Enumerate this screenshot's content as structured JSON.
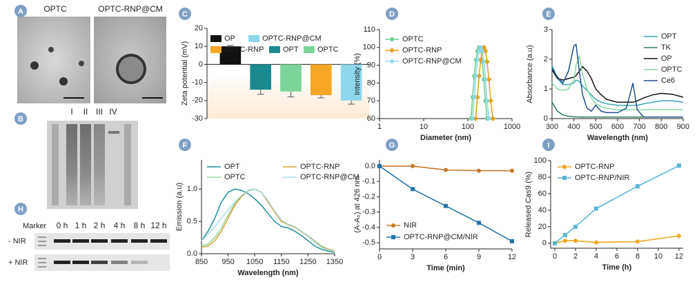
{
  "panels": [
    "A",
    "B",
    "C",
    "D",
    "E",
    "F",
    "G",
    "H",
    "I"
  ],
  "tem": {
    "labels": [
      "OPTC",
      "OPTC-RNP@CM"
    ]
  },
  "sds_page": {
    "lanes": [
      "I",
      "II",
      "III",
      "IV"
    ]
  },
  "release_gel": {
    "lanes": [
      "Marker",
      "0 h",
      "1 h",
      "2 h",
      "4 h",
      "8 h",
      "12 h"
    ],
    "rows": [
      "- NIR",
      "+ NIR"
    ]
  },
  "chart_data": [
    {
      "type": "bar",
      "ylabel": "Zeta potential (mV)",
      "ylim": [
        -30,
        20
      ],
      "yticks": [
        -30,
        -20,
        -10,
        0,
        10,
        20
      ],
      "series": [
        {
          "name": "OP",
          "color": "#111111",
          "values": [
            10
          ],
          "errors": [
            0.5
          ]
        },
        {
          "name": "OPT",
          "color": "#1b8a8f",
          "values": [
            -14
          ],
          "errors": [
            2.5
          ]
        },
        {
          "name": "OPTC",
          "color": "#7bd49a",
          "values": [
            -15
          ],
          "errors": [
            3
          ]
        },
        {
          "name": "OPTC-RNP",
          "color": "#f5a623",
          "values": [
            -17
          ],
          "errors": [
            1.5
          ]
        },
        {
          "name": "OPTC-RNP@CM",
          "color": "#8dd6ec",
          "values": [
            -20
          ],
          "errors": [
            2
          ]
        }
      ]
    },
    {
      "type": "line",
      "xscale": "log",
      "xlabel": "Diameter (nm)",
      "ylabel": "Intensity (%)",
      "xlim": [
        1,
        1000
      ],
      "xticks": [
        1,
        10,
        100,
        1000
      ],
      "ylim": [
        60,
        110
      ],
      "yticks": [
        60,
        70,
        80,
        90,
        100,
        110
      ],
      "series": [
        {
          "name": "OPTC",
          "color": "#6fcf8f",
          "marker": "circle",
          "x": [
            118,
            128,
            140,
            152,
            165,
            180,
            196,
            212,
            230,
            250,
            272
          ],
          "values": [
            60,
            72,
            84,
            93,
            98,
            100,
            98,
            92,
            82,
            70,
            60
          ]
        },
        {
          "name": "OPTC-RNP",
          "color": "#e0a21e",
          "marker": "diamond",
          "x": [
            150,
            165,
            180,
            196,
            212,
            230,
            250,
            272,
            300,
            330,
            370
          ],
          "values": [
            60,
            72,
            84,
            93,
            98,
            100,
            98,
            92,
            82,
            70,
            60
          ]
        },
        {
          "name": "OPTC-RNP@CM",
          "color": "#8fd8e6",
          "marker": "circle",
          "x": [
            128,
            140,
            152,
            165,
            180,
            196,
            212,
            230,
            250,
            272,
            300
          ],
          "values": [
            60,
            72,
            84,
            93,
            98,
            100,
            98,
            92,
            82,
            70,
            60
          ]
        }
      ]
    },
    {
      "type": "line",
      "xlabel": "Wavelength (nm)",
      "ylabel": "Absorbance (a.u)",
      "xlim": [
        300,
        900
      ],
      "xticks": [
        300,
        400,
        500,
        600,
        700,
        800,
        900
      ],
      "ylim": [
        0,
        3
      ],
      "yticks": [
        0,
        1,
        2,
        3
      ],
      "x": [
        300,
        325,
        350,
        375,
        400,
        410,
        425,
        440,
        460,
        480,
        500,
        525,
        550,
        600,
        640,
        660,
        670,
        690,
        720,
        760,
        800,
        850,
        900
      ],
      "series": [
        {
          "name": "OPT",
          "color": "#3aa6b0",
          "values": [
            1.8,
            1.35,
            1.15,
            1.15,
            1.2,
            1.3,
            1.25,
            1.1,
            0.95,
            0.8,
            0.65,
            0.55,
            0.5,
            0.45,
            0.45,
            0.45,
            0.45,
            0.45,
            0.5,
            0.55,
            0.6,
            0.6,
            0.55
          ]
        },
        {
          "name": "TK",
          "color": "#2e7d5b",
          "values": [
            0.55,
            0.25,
            0.12,
            0.08,
            0.06,
            0.06,
            0.05,
            0.05,
            0.05,
            0.05,
            0.05,
            0.05,
            0.05,
            0.05,
            0.05,
            0.05,
            0.05,
            0.05,
            0.05,
            0.05,
            0.05,
            0.05,
            0.05
          ]
        },
        {
          "name": "OP",
          "color": "#111111",
          "values": [
            1.65,
            1.35,
            1.3,
            1.35,
            1.4,
            1.45,
            1.6,
            1.75,
            1.6,
            1.35,
            1.0,
            0.8,
            0.65,
            0.55,
            0.55,
            0.55,
            0.55,
            0.6,
            0.7,
            0.8,
            0.85,
            0.82,
            0.72
          ]
        },
        {
          "name": "OPTC",
          "color": "#86d9a0",
          "values": [
            1.2,
            1.0,
            0.95,
            1.0,
            1.3,
            1.8,
            2.1,
            1.5,
            1.0,
            0.7,
            0.5,
            0.4,
            0.35,
            0.3,
            0.3,
            0.3,
            0.3,
            0.3,
            0.3,
            0.3,
            0.3,
            0.3,
            0.3
          ]
        },
        {
          "name": "Ce6",
          "color": "#214f8a",
          "values": [
            1.7,
            1.4,
            1.2,
            1.6,
            2.45,
            2.5,
            1.6,
            0.8,
            0.35,
            0.25,
            0.45,
            0.25,
            0.2,
            0.2,
            0.35,
            0.9,
            1.2,
            0.3,
            0.05,
            0.05,
            0.05,
            0.05,
            0.05
          ]
        }
      ]
    },
    {
      "type": "line",
      "xlabel": "Wavelength (nm)",
      "ylabel": "Emission (a.u)",
      "xlim": [
        850,
        1350
      ],
      "xticks": [
        850,
        950,
        1050,
        1150,
        1250,
        1350
      ],
      "ylim": [
        0,
        1.45
      ],
      "yticks": [
        {
          "value": 0,
          "label": "0.0"
        },
        0.5,
        {
          "value": 1,
          "label": "1.0"
        }
      ],
      "x": [
        850,
        875,
        900,
        925,
        950,
        975,
        1000,
        1025,
        1050,
        1075,
        1100,
        1125,
        1150,
        1175,
        1200,
        1225,
        1250,
        1275,
        1300,
        1325,
        1350
      ],
      "series": [
        {
          "name": "OPT",
          "color": "#1f8f97",
          "values": [
            0.2,
            0.35,
            0.55,
            0.8,
            0.95,
            1.0,
            0.98,
            0.93,
            0.85,
            0.75,
            0.62,
            0.5,
            0.42,
            0.4,
            0.35,
            0.28,
            0.2,
            0.12,
            0.07,
            0.04,
            0.02
          ]
        },
        {
          "name": "OPTC",
          "color": "#8fd69c",
          "values": [
            0.12,
            0.15,
            0.25,
            0.4,
            0.6,
            0.78,
            0.9,
            0.98,
            1.0,
            0.95,
            0.8,
            0.65,
            0.5,
            0.45,
            0.42,
            0.35,
            0.28,
            0.2,
            0.12,
            0.07,
            0.04
          ]
        },
        {
          "name": "OPTC-RNP",
          "color": "#d9a233",
          "values": [
            0.1,
            0.12,
            0.2,
            0.35,
            0.55,
            0.75,
            0.88,
            0.97,
            1.0,
            0.95,
            0.8,
            0.64,
            0.5,
            0.45,
            0.41,
            0.34,
            0.27,
            0.19,
            0.11,
            0.07,
            0.04
          ]
        },
        {
          "name": "OPTC-RNP@CM",
          "color": "#a9d8e6",
          "values": [
            0.2,
            0.3,
            0.42,
            0.55,
            0.68,
            0.8,
            0.9,
            0.97,
            1.0,
            0.95,
            0.82,
            0.66,
            0.52,
            0.46,
            0.42,
            0.35,
            0.27,
            0.18,
            0.1,
            0.06,
            0.03
          ]
        }
      ]
    },
    {
      "type": "line",
      "xlabel": "Time (min)",
      "ylabel": "(A-A₀) at 426 nm",
      "xlim": [
        0,
        12
      ],
      "xticks": [
        0,
        3,
        6,
        9,
        12
      ],
      "ylim": [
        -0.54,
        0.04
      ],
      "yticks": [
        {
          "value": 0,
          "label": "0.0"
        },
        -0.1,
        -0.2,
        -0.3,
        -0.4,
        -0.5
      ],
      "x": [
        0,
        3,
        6,
        9,
        12
      ],
      "series": [
        {
          "name": "NIR",
          "color": "#c8762a",
          "marker": "circle",
          "values": [
            0,
            0,
            -0.025,
            -0.03,
            -0.03
          ]
        },
        {
          "name": "OPTC-RNP@CM/NIR",
          "color": "#2474a8",
          "marker": "square",
          "values": [
            0,
            -0.15,
            -0.26,
            -0.37,
            -0.49
          ]
        }
      ]
    },
    {
      "type": "line",
      "xlabel": "Time (h)",
      "ylabel": "Released Cas9 (%)",
      "xlim": [
        -0.4,
        12.4
      ],
      "xticks": [
        0,
        2,
        4,
        6,
        8,
        10,
        12
      ],
      "ylim": [
        -6,
        100
      ],
      "yticks": [
        0,
        20,
        40,
        60,
        80,
        100
      ],
      "x": [
        0,
        1,
        2,
        4,
        8,
        12
      ],
      "series": [
        {
          "name": "OPTC-RNP",
          "color": "#f0a51e",
          "marker": "circle",
          "values": [
            0,
            3,
            3,
            1,
            2,
            9
          ]
        },
        {
          "name": "OPTC-RNP/NIR",
          "color": "#5ab4d6",
          "marker": "square",
          "values": [
            0,
            10,
            20,
            42,
            69,
            94
          ]
        }
      ]
    }
  ]
}
